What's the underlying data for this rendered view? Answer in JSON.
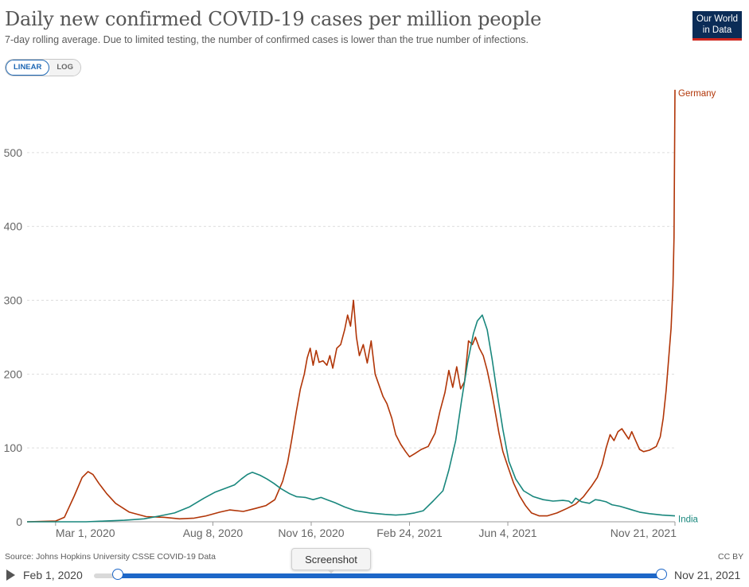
{
  "header": {
    "title": "Daily new confirmed COVID-19 cases per million people",
    "subtitle": "7-day rolling average. Due to limited testing, the number of confirmed cases is lower than the true number of infections.",
    "logo_line1": "Our World",
    "logo_line2": "in Data"
  },
  "scale_toggle": {
    "linear": "LINEAR",
    "log": "LOG",
    "active": "linear"
  },
  "footer": {
    "source": "Source: Johns Hopkins University CSSE COVID-19 Data",
    "license": "CC BY"
  },
  "timeline": {
    "start": "Feb 1, 2020",
    "end": "Nov 21, 2021",
    "tooltip": "Screenshot"
  },
  "chart_data": {
    "type": "line",
    "title": "Daily new confirmed COVID-19 cases per million people",
    "xlabel": "",
    "ylabel": "",
    "ylim": [
      0,
      590
    ],
    "yticks": [
      0,
      100,
      200,
      300,
      400,
      500
    ],
    "x_domain": [
      "2020-02-01",
      "2021-11-21"
    ],
    "x_ticks": [
      {
        "date": "2020-03-01",
        "label": "Mar 1, 2020"
      },
      {
        "date": "2020-08-08",
        "label": "Aug 8, 2020"
      },
      {
        "date": "2020-11-16",
        "label": "Nov 16, 2020"
      },
      {
        "date": "2021-02-24",
        "label": "Feb 24, 2021"
      },
      {
        "date": "2021-06-04",
        "label": "Jun 4, 2021"
      },
      {
        "date": "2021-11-21",
        "label": "Nov 21, 2021"
      }
    ],
    "grid": true,
    "series": [
      {
        "name": "Germany",
        "color": "#b13507",
        "points": [
          [
            "2020-02-01",
            0
          ],
          [
            "2020-03-01",
            1
          ],
          [
            "2020-03-10",
            6
          ],
          [
            "2020-03-20",
            35
          ],
          [
            "2020-03-28",
            60
          ],
          [
            "2020-04-03",
            68
          ],
          [
            "2020-04-08",
            64
          ],
          [
            "2020-04-14",
            52
          ],
          [
            "2020-04-22",
            38
          ],
          [
            "2020-05-01",
            25
          ],
          [
            "2020-05-15",
            13
          ],
          [
            "2020-06-01",
            7
          ],
          [
            "2020-06-20",
            6
          ],
          [
            "2020-07-05",
            4
          ],
          [
            "2020-07-20",
            5
          ],
          [
            "2020-08-01",
            8
          ],
          [
            "2020-08-15",
            13
          ],
          [
            "2020-08-25",
            16
          ],
          [
            "2020-09-08",
            14
          ],
          [
            "2020-09-20",
            18
          ],
          [
            "2020-10-01",
            22
          ],
          [
            "2020-10-10",
            30
          ],
          [
            "2020-10-18",
            55
          ],
          [
            "2020-10-23",
            80
          ],
          [
            "2020-10-27",
            110
          ],
          [
            "2020-11-01",
            150
          ],
          [
            "2020-11-05",
            180
          ],
          [
            "2020-11-09",
            200
          ],
          [
            "2020-11-12",
            222
          ],
          [
            "2020-11-15",
            235
          ],
          [
            "2020-11-18",
            212
          ],
          [
            "2020-11-21",
            232
          ],
          [
            "2020-11-24",
            216
          ],
          [
            "2020-11-28",
            218
          ],
          [
            "2020-12-02",
            212
          ],
          [
            "2020-12-05",
            225
          ],
          [
            "2020-12-08",
            208
          ],
          [
            "2020-12-12",
            235
          ],
          [
            "2020-12-16",
            240
          ],
          [
            "2020-12-20",
            260
          ],
          [
            "2020-12-23",
            280
          ],
          [
            "2020-12-26",
            265
          ],
          [
            "2020-12-29",
            300
          ],
          [
            "2021-01-01",
            250
          ],
          [
            "2021-01-04",
            225
          ],
          [
            "2021-01-08",
            240
          ],
          [
            "2021-01-12",
            215
          ],
          [
            "2021-01-16",
            245
          ],
          [
            "2021-01-20",
            200
          ],
          [
            "2021-01-24",
            185
          ],
          [
            "2021-01-28",
            170
          ],
          [
            "2021-02-01",
            160
          ],
          [
            "2021-02-06",
            140
          ],
          [
            "2021-02-10",
            118
          ],
          [
            "2021-02-15",
            105
          ],
          [
            "2021-02-20",
            95
          ],
          [
            "2021-02-24",
            88
          ],
          [
            "2021-03-01",
            92
          ],
          [
            "2021-03-08",
            98
          ],
          [
            "2021-03-15",
            102
          ],
          [
            "2021-03-22",
            120
          ],
          [
            "2021-03-27",
            150
          ],
          [
            "2021-04-01",
            175
          ],
          [
            "2021-04-05",
            205
          ],
          [
            "2021-04-09",
            182
          ],
          [
            "2021-04-13",
            210
          ],
          [
            "2021-04-17",
            180
          ],
          [
            "2021-04-21",
            190
          ],
          [
            "2021-04-25",
            245
          ],
          [
            "2021-04-29",
            240
          ],
          [
            "2021-05-02",
            250
          ],
          [
            "2021-05-06",
            235
          ],
          [
            "2021-05-10",
            225
          ],
          [
            "2021-05-14",
            205
          ],
          [
            "2021-05-18",
            180
          ],
          [
            "2021-05-22",
            150
          ],
          [
            "2021-05-26",
            120
          ],
          [
            "2021-05-30",
            95
          ],
          [
            "2021-06-04",
            75
          ],
          [
            "2021-06-10",
            52
          ],
          [
            "2021-06-16",
            35
          ],
          [
            "2021-06-22",
            22
          ],
          [
            "2021-06-28",
            12
          ],
          [
            "2021-07-06",
            8
          ],
          [
            "2021-07-14",
            8
          ],
          [
            "2021-07-24",
            12
          ],
          [
            "2021-08-03",
            18
          ],
          [
            "2021-08-12",
            24
          ],
          [
            "2021-08-20",
            34
          ],
          [
            "2021-08-28",
            48
          ],
          [
            "2021-09-03",
            60
          ],
          [
            "2021-09-08",
            78
          ],
          [
            "2021-09-12",
            100
          ],
          [
            "2021-09-16",
            118
          ],
          [
            "2021-09-20",
            110
          ],
          [
            "2021-09-24",
            122
          ],
          [
            "2021-09-28",
            126
          ],
          [
            "2021-10-02",
            118
          ],
          [
            "2021-10-05",
            112
          ],
          [
            "2021-10-08",
            122
          ],
          [
            "2021-10-12",
            110
          ],
          [
            "2021-10-16",
            98
          ],
          [
            "2021-10-20",
            95
          ],
          [
            "2021-10-26",
            97
          ],
          [
            "2021-11-02",
            102
          ],
          [
            "2021-11-06",
            115
          ],
          [
            "2021-11-09",
            140
          ],
          [
            "2021-11-12",
            178
          ],
          [
            "2021-11-15",
            228
          ],
          [
            "2021-11-17",
            262
          ],
          [
            "2021-11-19",
            320
          ],
          [
            "2021-11-20",
            385
          ],
          [
            "2021-11-21",
            585
          ]
        ]
      },
      {
        "name": "India",
        "color": "#19877d",
        "points": [
          [
            "2020-02-01",
            0
          ],
          [
            "2020-03-15",
            0
          ],
          [
            "2020-04-01",
            0
          ],
          [
            "2020-04-20",
            1
          ],
          [
            "2020-05-10",
            2
          ],
          [
            "2020-05-30",
            4
          ],
          [
            "2020-06-15",
            8
          ],
          [
            "2020-06-30",
            12
          ],
          [
            "2020-07-15",
            20
          ],
          [
            "2020-07-30",
            32
          ],
          [
            "2020-08-10",
            40
          ],
          [
            "2020-08-20",
            45
          ],
          [
            "2020-08-30",
            50
          ],
          [
            "2020-09-06",
            58
          ],
          [
            "2020-09-12",
            64
          ],
          [
            "2020-09-17",
            67
          ],
          [
            "2020-09-25",
            63
          ],
          [
            "2020-10-02",
            58
          ],
          [
            "2020-10-09",
            52
          ],
          [
            "2020-10-16",
            45
          ],
          [
            "2020-10-25",
            38
          ],
          [
            "2020-11-01",
            34
          ],
          [
            "2020-11-10",
            33
          ],
          [
            "2020-11-18",
            30
          ],
          [
            "2020-11-26",
            33
          ],
          [
            "2020-12-02",
            30
          ],
          [
            "2020-12-10",
            26
          ],
          [
            "2020-12-20",
            20
          ],
          [
            "2020-12-31",
            15
          ],
          [
            "2021-01-15",
            12
          ],
          [
            "2021-01-30",
            10
          ],
          [
            "2021-02-10",
            9
          ],
          [
            "2021-02-20",
            10
          ],
          [
            "2021-03-01",
            12
          ],
          [
            "2021-03-10",
            15
          ],
          [
            "2021-03-20",
            28
          ],
          [
            "2021-03-30",
            42
          ],
          [
            "2021-04-05",
            70
          ],
          [
            "2021-04-12",
            110
          ],
          [
            "2021-04-18",
            165
          ],
          [
            "2021-04-24",
            215
          ],
          [
            "2021-04-30",
            255
          ],
          [
            "2021-05-04",
            272
          ],
          [
            "2021-05-09",
            280
          ],
          [
            "2021-05-14",
            260
          ],
          [
            "2021-05-19",
            220
          ],
          [
            "2021-05-24",
            175
          ],
          [
            "2021-05-30",
            125
          ],
          [
            "2021-06-05",
            82
          ],
          [
            "2021-06-12",
            58
          ],
          [
            "2021-06-20",
            42
          ],
          [
            "2021-06-30",
            34
          ],
          [
            "2021-07-10",
            30
          ],
          [
            "2021-07-20",
            28
          ],
          [
            "2021-07-30",
            29
          ],
          [
            "2021-08-05",
            28
          ],
          [
            "2021-08-08",
            25
          ],
          [
            "2021-08-12",
            32
          ],
          [
            "2021-08-18",
            27
          ],
          [
            "2021-08-26",
            25
          ],
          [
            "2021-09-01",
            30
          ],
          [
            "2021-09-06",
            29
          ],
          [
            "2021-09-12",
            27
          ],
          [
            "2021-09-18",
            23
          ],
          [
            "2021-09-26",
            21
          ],
          [
            "2021-10-06",
            17
          ],
          [
            "2021-10-16",
            13
          ],
          [
            "2021-10-26",
            11
          ],
          [
            "2021-11-08",
            9
          ],
          [
            "2021-11-21",
            8
          ]
        ]
      }
    ]
  }
}
